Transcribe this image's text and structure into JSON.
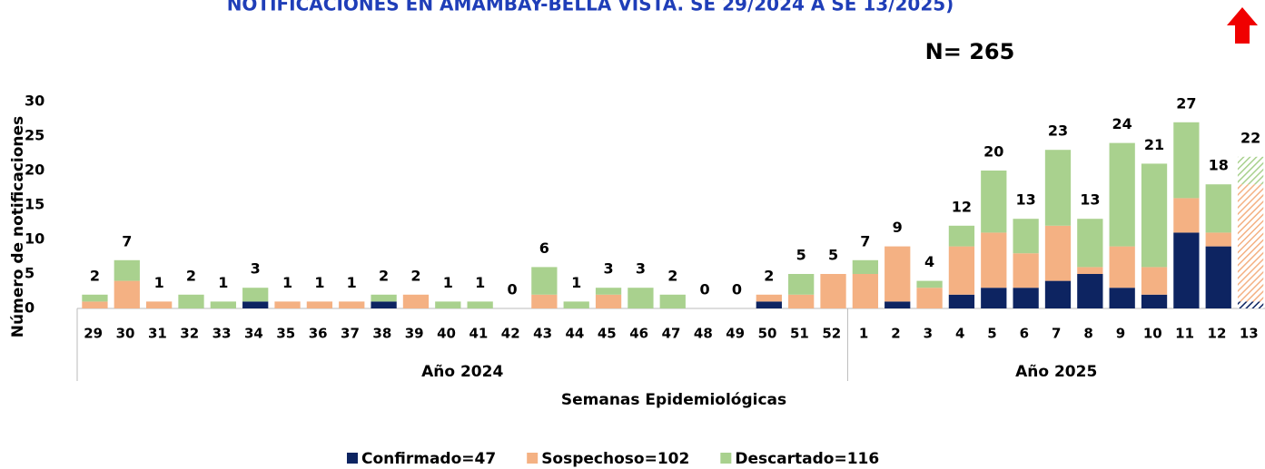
{
  "chart_data": {
    "type": "stacked_bar",
    "title": "NOTIFICACIONES EN AMAMBAY-BELLA VISTA. SE 29/2024 A SE 13/2025)",
    "annotation": "N= 265",
    "x_label": "Semanas Epidemiológicas",
    "y_label": "Número de notificaciones",
    "groups": [
      {
        "label": "Año 2024",
        "count": 24
      },
      {
        "label": "Año 2025",
        "count": 13
      }
    ],
    "categories": [
      "29",
      "30",
      "31",
      "32",
      "33",
      "34",
      "35",
      "36",
      "37",
      "38",
      "39",
      "40",
      "41",
      "42",
      "43",
      "44",
      "45",
      "46",
      "47",
      "48",
      "49",
      "50",
      "51",
      "52",
      "1",
      "2",
      "3",
      "4",
      "5",
      "6",
      "7",
      "8",
      "9",
      "10",
      "11",
      "12",
      "13"
    ],
    "series": [
      {
        "name": "Confirmado=47",
        "color": "#0d2461",
        "values": [
          0,
          0,
          0,
          0,
          0,
          1,
          0,
          0,
          0,
          1,
          0,
          0,
          0,
          0,
          0,
          0,
          0,
          0,
          0,
          0,
          0,
          1,
          0,
          0,
          0,
          1,
          0,
          2,
          3,
          3,
          4,
          5,
          3,
          2,
          11,
          9,
          1
        ]
      },
      {
        "name": "Sospechoso=102",
        "color": "#f4b183",
        "values": [
          1,
          4,
          1,
          0,
          0,
          0,
          1,
          1,
          1,
          0,
          2,
          0,
          0,
          0,
          2,
          0,
          2,
          0,
          0,
          0,
          0,
          1,
          2,
          5,
          5,
          8,
          3,
          7,
          8,
          5,
          8,
          1,
          6,
          4,
          5,
          2,
          17
        ]
      },
      {
        "name": "Descartado=116",
        "color": "#a9d18e",
        "values": [
          1,
          3,
          0,
          2,
          1,
          2,
          0,
          0,
          0,
          1,
          0,
          1,
          1,
          0,
          4,
          1,
          1,
          3,
          2,
          0,
          0,
          0,
          3,
          0,
          2,
          0,
          1,
          3,
          9,
          5,
          11,
          7,
          15,
          15,
          11,
          7,
          4
        ]
      }
    ],
    "totals": [
      2,
      7,
      1,
      2,
      1,
      3,
      1,
      1,
      1,
      2,
      2,
      1,
      1,
      0,
      6,
      1,
      3,
      3,
      2,
      0,
      0,
      2,
      5,
      5,
      7,
      9,
      4,
      12,
      20,
      13,
      23,
      13,
      24,
      21,
      27,
      18,
      22
    ],
    "ylim": [
      0,
      30
    ],
    "yticks": [
      0,
      5,
      10,
      15,
      20,
      25,
      30
    ],
    "grid": false,
    "legend": "bottom"
  }
}
